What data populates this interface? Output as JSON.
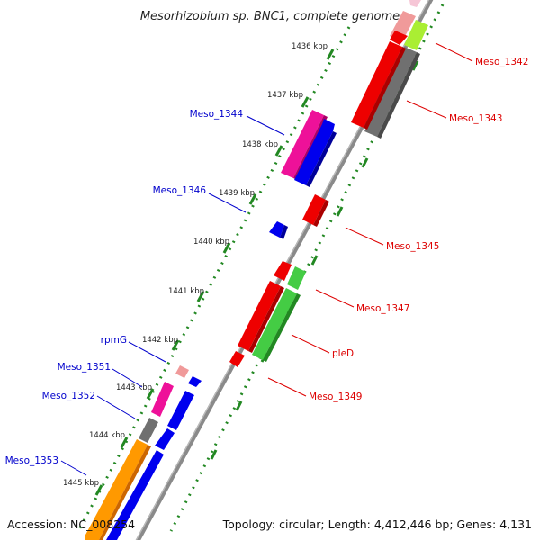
{
  "title": "Mesorhizobium sp. BNC1, complete genome",
  "accession": "Accession: NC_008254",
  "topology": "Topology: circular; Length: 4,412,446 bp; Genes: 4,131",
  "kbp_ticks": [
    "1436 kbp",
    "1437 kbp",
    "1438 kbp",
    "1439 kbp",
    "1440 kbp",
    "1441 kbp",
    "1442 kbp",
    "1443 kbp",
    "1444 kbp",
    "1445 kbp"
  ],
  "colors": {
    "red": "#ee0000",
    "blue": "#0000ee",
    "magenta": "#ee1199",
    "green": "#44cc44",
    "grey": "#707070",
    "orange": "#ff9900",
    "lime": "#aaee33",
    "pink": "#f09a9a",
    "backbone": "#8a8a8a",
    "tick": "#228822",
    "label_left": "#0000cc",
    "label_right": "#dd0000"
  },
  "genes": [
    {
      "name": "Meso_1342"
    },
    {
      "name": "Meso_1343"
    },
    {
      "name": "Meso_1344"
    },
    {
      "name": "Meso_1345"
    },
    {
      "name": "Meso_1346"
    },
    {
      "name": "Meso_1347"
    },
    {
      "name": "pleD"
    },
    {
      "name": "rpmG"
    },
    {
      "name": "Meso_1349"
    },
    {
      "name": "Meso_1351"
    },
    {
      "name": "Meso_1352"
    },
    {
      "name": "Meso_1353"
    }
  ]
}
